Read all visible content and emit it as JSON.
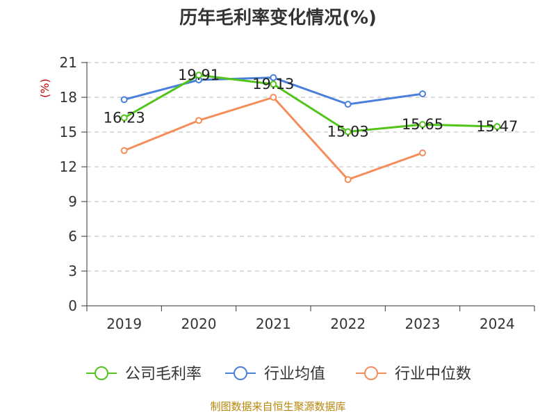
{
  "chart_data": {
    "type": "line",
    "title": "历年毛利率变化情况(%)",
    "ylabel": "(%)",
    "categories": [
      "2019",
      "2020",
      "2021",
      "2022",
      "2023",
      "2024"
    ],
    "ylim": [
      0,
      21
    ],
    "yticks": [
      "0",
      "3",
      "6",
      "9",
      "12",
      "15",
      "18",
      "21"
    ],
    "grid": true,
    "legend_position": "bottom",
    "series": [
      {
        "name": "公司毛利率",
        "color": "#52c41a",
        "values": [
          16.23,
          19.91,
          19.13,
          15.03,
          15.65,
          15.47
        ],
        "labels": [
          "16.23",
          "19.91",
          "19.13",
          "15.03",
          "15.65",
          "15.47"
        ]
      },
      {
        "name": "行业均值",
        "color": "#4a7fdb",
        "values": [
          17.8,
          19.5,
          19.7,
          17.4,
          18.3,
          null
        ]
      },
      {
        "name": "行业中位数",
        "color": "#f58d5a",
        "values": [
          13.4,
          16.0,
          18.0,
          10.9,
          13.2,
          null
        ]
      }
    ],
    "source": "制图数据来自恒生聚源数据库"
  }
}
